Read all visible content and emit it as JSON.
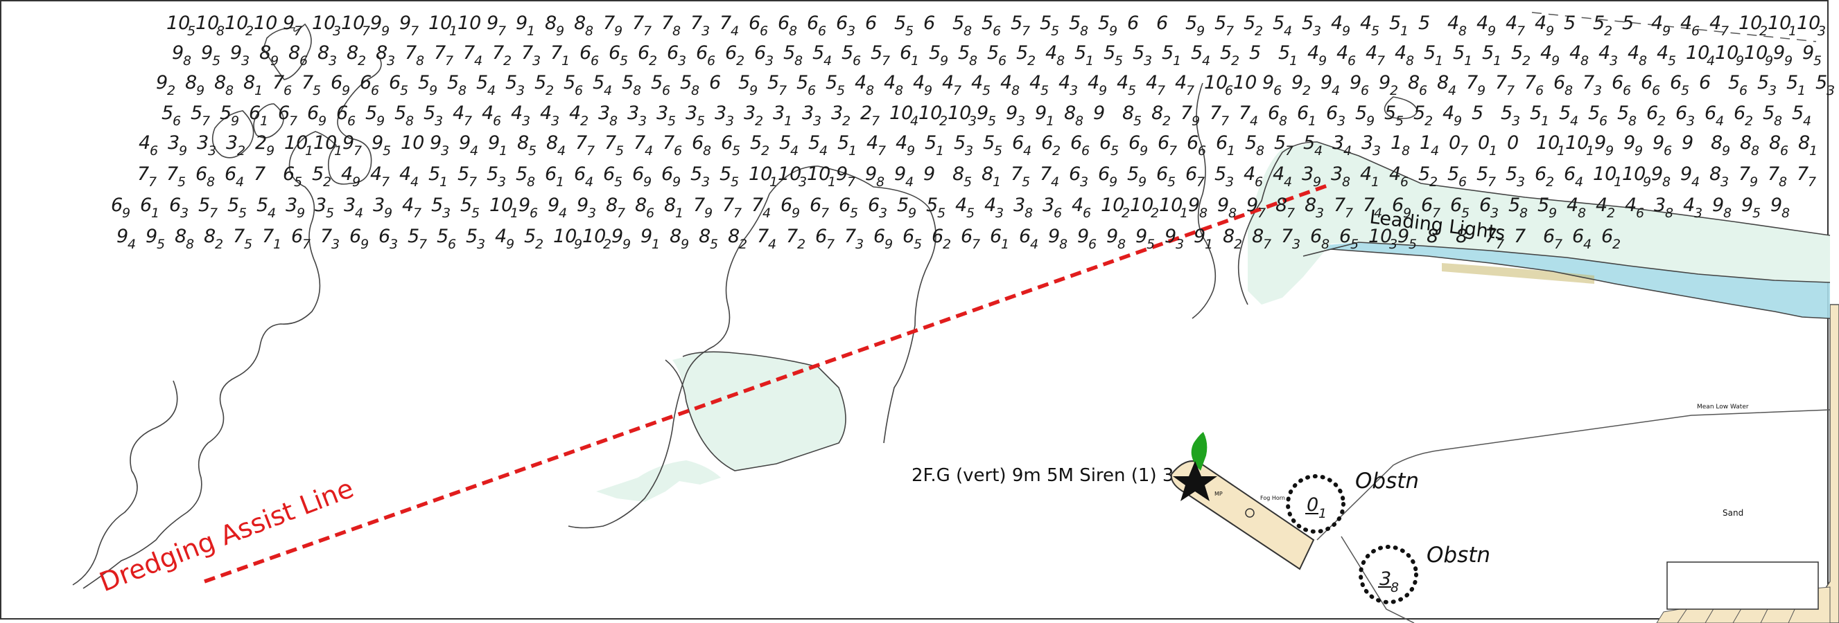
{
  "chart_title": "",
  "labels": {
    "dredging_line": "Dredging Assist Line",
    "leading_lights": "Leading Lights",
    "light_characteristic": "2F.G (vert) 9m 5M Siren (1) 30s",
    "obstruction_1": "Obstn",
    "obstruction_2": "Obstn",
    "obstruction_1_depth": "0",
    "obstruction_1_depth_sub": "1",
    "obstruction_2_depth": "3",
    "obstruction_2_depth_sub": "8",
    "mean_low_water": "Mean Low Water",
    "sand": "Sand",
    "fog_horn": "Fog Horn",
    "mp": "MP"
  },
  "colors": {
    "dredging_line": "#e11d1d",
    "shoal_tint": "#e4f4ec",
    "drying_tint": "#a8dce8",
    "land_tint": "#f5e6c4",
    "light_flare": "#1fa31f"
  },
  "icons": [
    "light-star-icon",
    "light-flare-icon",
    "obstruction-circle-icon"
  ],
  "soundings": [
    [
      "10",
      "5"
    ],
    [
      "10",
      "8"
    ],
    [
      "10",
      "2"
    ],
    [
      "10",
      ""
    ],
    [
      "9",
      "7"
    ],
    [
      "10",
      "3"
    ],
    [
      "10",
      "7"
    ],
    [
      "9",
      "9"
    ],
    [
      "9",
      "7"
    ],
    [
      "10",
      "1"
    ],
    [
      "10",
      ""
    ],
    [
      "9",
      "7"
    ],
    [
      "9",
      "1"
    ],
    [
      "8",
      "9"
    ],
    [
      "8",
      "8"
    ],
    [
      "7",
      "9"
    ],
    [
      "7",
      "7"
    ],
    [
      "7",
      "8"
    ],
    [
      "7",
      "3"
    ],
    [
      "7",
      "4"
    ],
    [
      "6",
      "6"
    ],
    [
      "6",
      "8"
    ],
    [
      "6",
      "6"
    ],
    [
      "6",
      "3"
    ],
    [
      "6",
      ""
    ],
    [
      "5",
      "5"
    ],
    [
      "6",
      ""
    ],
    [
      "5",
      "8"
    ],
    [
      "5",
      "6"
    ],
    [
      "5",
      "7"
    ],
    [
      "5",
      "5"
    ],
    [
      "5",
      "8"
    ],
    [
      "5",
      "9"
    ],
    [
      "6",
      ""
    ],
    [
      "6",
      ""
    ],
    [
      "5",
      "9"
    ],
    [
      "5",
      "7"
    ],
    [
      "5",
      "2"
    ],
    [
      "5",
      "4"
    ],
    [
      "5",
      "3"
    ],
    [
      "4",
      "9"
    ],
    [
      "4",
      "5"
    ],
    [
      "5",
      "1"
    ],
    [
      "5",
      ""
    ],
    [
      "4",
      "8"
    ],
    [
      "4",
      "9"
    ],
    [
      "4",
      "7"
    ],
    [
      "4",
      "9"
    ],
    [
      "5",
      ""
    ],
    [
      "5",
      "2"
    ],
    [
      "5",
      ""
    ],
    [
      "4",
      "9"
    ],
    [
      "4",
      "6"
    ],
    [
      "4",
      "7"
    ],
    [
      "10",
      "2"
    ],
    [
      "10",
      "1"
    ],
    [
      "10",
      "3"
    ],
    [
      "9",
      "8"
    ],
    [
      "9",
      "5"
    ],
    [
      "9",
      "3"
    ],
    [
      "8",
      "9"
    ],
    [
      "8",
      "6"
    ],
    [
      "8",
      "3"
    ],
    [
      "8",
      "2"
    ],
    [
      "8",
      "3"
    ],
    [
      "7",
      "8"
    ],
    [
      "7",
      "7"
    ],
    [
      "7",
      "4"
    ],
    [
      "7",
      "2"
    ],
    [
      "7",
      "3"
    ],
    [
      "7",
      "1"
    ],
    [
      "6",
      "6"
    ],
    [
      "6",
      "5"
    ],
    [
      "6",
      "2"
    ],
    [
      "6",
      "3"
    ],
    [
      "6",
      "6"
    ],
    [
      "6",
      "2"
    ],
    [
      "6",
      "3"
    ],
    [
      "5",
      "8"
    ],
    [
      "5",
      "4"
    ],
    [
      "5",
      "6"
    ],
    [
      "5",
      "7"
    ],
    [
      "6",
      "1"
    ],
    [
      "5",
      "9"
    ],
    [
      "5",
      "8"
    ],
    [
      "5",
      "6"
    ],
    [
      "5",
      "2"
    ],
    [
      "4",
      "8"
    ],
    [
      "5",
      "1"
    ],
    [
      "5",
      "5"
    ],
    [
      "5",
      "3"
    ],
    [
      "5",
      "1"
    ],
    [
      "5",
      "4"
    ],
    [
      "5",
      "2"
    ],
    [
      "5",
      ""
    ],
    [
      "5",
      "1"
    ],
    [
      "4",
      "9"
    ],
    [
      "4",
      "6"
    ],
    [
      "4",
      "7"
    ],
    [
      "4",
      "8"
    ],
    [
      "5",
      "1"
    ],
    [
      "5",
      "1"
    ],
    [
      "5",
      "1"
    ],
    [
      "5",
      "2"
    ],
    [
      "4",
      "9"
    ],
    [
      "4",
      "8"
    ],
    [
      "4",
      "3"
    ],
    [
      "4",
      "8"
    ],
    [
      "4",
      "5"
    ],
    [
      "10",
      "4"
    ],
    [
      "10",
      "9"
    ],
    [
      "10",
      "9"
    ],
    [
      "9",
      "9"
    ],
    [
      "9",
      "5"
    ],
    [
      "9",
      "2"
    ],
    [
      "8",
      "9"
    ],
    [
      "8",
      "8"
    ],
    [
      "8",
      "1"
    ],
    [
      "7",
      "6"
    ],
    [
      "7",
      "5"
    ],
    [
      "6",
      "9"
    ],
    [
      "6",
      "6"
    ],
    [
      "6",
      "5"
    ],
    [
      "5",
      "9"
    ],
    [
      "5",
      "8"
    ],
    [
      "5",
      "4"
    ],
    [
      "5",
      "3"
    ],
    [
      "5",
      "2"
    ],
    [
      "5",
      "6"
    ],
    [
      "5",
      "4"
    ],
    [
      "5",
      "8"
    ],
    [
      "5",
      "6"
    ],
    [
      "5",
      "8"
    ],
    [
      "6",
      ""
    ],
    [
      "5",
      "9"
    ],
    [
      "5",
      "7"
    ],
    [
      "5",
      "6"
    ],
    [
      "5",
      "5"
    ],
    [
      "4",
      "8"
    ],
    [
      "4",
      "8"
    ],
    [
      "4",
      "9"
    ],
    [
      "4",
      "7"
    ],
    [
      "4",
      "5"
    ],
    [
      "4",
      "8"
    ],
    [
      "4",
      "5"
    ],
    [
      "4",
      "3"
    ],
    [
      "4",
      "9"
    ],
    [
      "4",
      "5"
    ],
    [
      "4",
      "7"
    ],
    [
      "4",
      "7"
    ],
    [
      "10",
      "6"
    ],
    [
      "10",
      ""
    ],
    [
      "9",
      "6"
    ],
    [
      "9",
      "2"
    ],
    [
      "9",
      "4"
    ],
    [
      "9",
      "6"
    ],
    [
      "9",
      "2"
    ],
    [
      "8",
      "6"
    ],
    [
      "8",
      "4"
    ],
    [
      "7",
      "9"
    ],
    [
      "7",
      "7"
    ],
    [
      "7",
      "6"
    ],
    [
      "6",
      "8"
    ],
    [
      "7",
      "3"
    ],
    [
      "6",
      "6"
    ],
    [
      "6",
      "6"
    ],
    [
      "6",
      "5"
    ],
    [
      "6",
      ""
    ],
    [
      "5",
      "6"
    ],
    [
      "5",
      "3"
    ],
    [
      "5",
      "1"
    ],
    [
      "5",
      "3"
    ],
    [
      "5",
      "6"
    ],
    [
      "5",
      "7"
    ],
    [
      "5",
      "9"
    ],
    [
      "6",
      "1"
    ],
    [
      "6",
      "7"
    ],
    [
      "6",
      "9"
    ],
    [
      "6",
      "6"
    ],
    [
      "5",
      "9"
    ],
    [
      "5",
      "8"
    ],
    [
      "5",
      "3"
    ],
    [
      "4",
      "7"
    ],
    [
      "4",
      "6"
    ],
    [
      "4",
      "3"
    ],
    [
      "4",
      "3"
    ],
    [
      "4",
      "2"
    ],
    [
      "3",
      "8"
    ],
    [
      "3",
      "3"
    ],
    [
      "3",
      "5"
    ],
    [
      "3",
      "5"
    ],
    [
      "3",
      "3"
    ],
    [
      "3",
      "2"
    ],
    [
      "3",
      "1"
    ],
    [
      "3",
      "3"
    ],
    [
      "3",
      "2"
    ],
    [
      "2",
      "7"
    ],
    [
      "10",
      "4"
    ],
    [
      "10",
      "2"
    ],
    [
      "10",
      "3"
    ],
    [
      "9",
      "5"
    ],
    [
      "9",
      "3"
    ],
    [
      "9",
      "1"
    ],
    [
      "8",
      "8"
    ],
    [
      "9",
      ""
    ],
    [
      "8",
      "5"
    ],
    [
      "8",
      "2"
    ],
    [
      "7",
      "9"
    ],
    [
      "7",
      "7"
    ],
    [
      "7",
      "4"
    ],
    [
      "6",
      "8"
    ],
    [
      "6",
      "1"
    ],
    [
      "6",
      "3"
    ],
    [
      "5",
      "9"
    ],
    [
      "5",
      "5"
    ],
    [
      "5",
      "2"
    ],
    [
      "4",
      "9"
    ],
    [
      "5",
      ""
    ],
    [
      "5",
      "3"
    ],
    [
      "5",
      "1"
    ],
    [
      "5",
      "4"
    ],
    [
      "5",
      "6"
    ],
    [
      "5",
      "8"
    ],
    [
      "6",
      "2"
    ],
    [
      "6",
      "3"
    ],
    [
      "6",
      "4"
    ],
    [
      "6",
      "2"
    ],
    [
      "5",
      "8"
    ],
    [
      "5",
      "4"
    ],
    [
      "4",
      "6"
    ],
    [
      "3",
      "9"
    ],
    [
      "3",
      "3"
    ],
    [
      "3",
      "2"
    ],
    [
      "2",
      "9"
    ],
    [
      "10",
      "1"
    ],
    [
      "10",
      "1"
    ],
    [
      "9",
      "7"
    ],
    [
      "9",
      "5"
    ],
    [
      "10",
      ""
    ],
    [
      "9",
      "3"
    ],
    [
      "9",
      "4"
    ],
    [
      "9",
      "1"
    ],
    [
      "8",
      "5"
    ],
    [
      "8",
      "4"
    ],
    [
      "7",
      "7"
    ],
    [
      "7",
      "5"
    ],
    [
      "7",
      "4"
    ],
    [
      "7",
      "6"
    ],
    [
      "6",
      "8"
    ],
    [
      "6",
      "5"
    ],
    [
      "5",
      "2"
    ],
    [
      "5",
      "4"
    ],
    [
      "5",
      "4"
    ],
    [
      "5",
      "1"
    ],
    [
      "4",
      "7"
    ],
    [
      "4",
      "9"
    ],
    [
      "5",
      "1"
    ],
    [
      "5",
      "3"
    ],
    [
      "5",
      "5"
    ],
    [
      "6",
      "4"
    ],
    [
      "6",
      "2"
    ],
    [
      "6",
      "6"
    ],
    [
      "6",
      "5"
    ],
    [
      "6",
      "9"
    ],
    [
      "6",
      "7"
    ],
    [
      "6",
      "6"
    ],
    [
      "6",
      "1"
    ],
    [
      "5",
      "8"
    ],
    [
      "5",
      "7"
    ],
    [
      "5",
      "4"
    ],
    [
      "3",
      "4"
    ],
    [
      "3",
      "3"
    ],
    [
      "1",
      "8"
    ],
    [
      "1",
      "4"
    ],
    [
      "0",
      "7"
    ],
    [
      "0",
      "1"
    ],
    [
      "0",
      ""
    ],
    [
      "10",
      "1"
    ],
    [
      "10",
      "1"
    ],
    [
      "9",
      "9"
    ],
    [
      "9",
      "9"
    ],
    [
      "9",
      "6"
    ],
    [
      "9",
      ""
    ],
    [
      "8",
      "9"
    ],
    [
      "8",
      "8"
    ],
    [
      "8",
      "6"
    ],
    [
      "8",
      "1"
    ],
    [
      "7",
      "7"
    ],
    [
      "7",
      "5"
    ],
    [
      "6",
      "8"
    ],
    [
      "6",
      "4"
    ],
    [
      "7",
      ""
    ],
    [
      "6",
      "5"
    ],
    [
      "5",
      "2"
    ],
    [
      "4",
      "9"
    ],
    [
      "4",
      "7"
    ],
    [
      "4",
      "4"
    ],
    [
      "5",
      "1"
    ],
    [
      "5",
      "7"
    ],
    [
      "5",
      "3"
    ],
    [
      "5",
      "8"
    ],
    [
      "6",
      "1"
    ],
    [
      "6",
      "4"
    ],
    [
      "6",
      "5"
    ],
    [
      "6",
      "9"
    ],
    [
      "6",
      "9"
    ],
    [
      "5",
      "3"
    ],
    [
      "5",
      "5"
    ],
    [
      "10",
      "1"
    ],
    [
      "10",
      "3"
    ],
    [
      "10",
      "1"
    ],
    [
      "9",
      "7"
    ],
    [
      "9",
      "8"
    ],
    [
      "9",
      "4"
    ],
    [
      "9",
      ""
    ],
    [
      "8",
      "5"
    ],
    [
      "8",
      "1"
    ],
    [
      "7",
      "5"
    ],
    [
      "7",
      "4"
    ],
    [
      "6",
      "3"
    ],
    [
      "6",
      "9"
    ],
    [
      "5",
      "9"
    ],
    [
      "6",
      "5"
    ],
    [
      "6",
      "7"
    ],
    [
      "5",
      "3"
    ],
    [
      "4",
      "6"
    ],
    [
      "4",
      "4"
    ],
    [
      "3",
      "9"
    ],
    [
      "3",
      "8"
    ],
    [
      "4",
      "1"
    ],
    [
      "4",
      "6"
    ],
    [
      "5",
      "2"
    ],
    [
      "5",
      "6"
    ],
    [
      "5",
      "7"
    ],
    [
      "5",
      "3"
    ],
    [
      "6",
      "2"
    ],
    [
      "6",
      "4"
    ],
    [
      "10",
      "1"
    ],
    [
      "10",
      "9"
    ],
    [
      "9",
      "8"
    ],
    [
      "9",
      "4"
    ],
    [
      "8",
      "3"
    ],
    [
      "7",
      "9"
    ],
    [
      "7",
      "8"
    ],
    [
      "7",
      "7"
    ],
    [
      "6",
      "9"
    ],
    [
      "6",
      "1"
    ],
    [
      "6",
      "3"
    ],
    [
      "5",
      "7"
    ],
    [
      "5",
      "5"
    ],
    [
      "5",
      "4"
    ],
    [
      "3",
      "9"
    ],
    [
      "3",
      "5"
    ],
    [
      "3",
      "4"
    ],
    [
      "3",
      "9"
    ],
    [
      "4",
      "7"
    ],
    [
      "5",
      "3"
    ],
    [
      "5",
      "5"
    ],
    [
      "10",
      "1"
    ],
    [
      "9",
      "6"
    ],
    [
      "9",
      "4"
    ],
    [
      "9",
      "3"
    ],
    [
      "8",
      "7"
    ],
    [
      "8",
      "6"
    ],
    [
      "8",
      "1"
    ],
    [
      "7",
      "9"
    ],
    [
      "7",
      "7"
    ],
    [
      "7",
      "4"
    ],
    [
      "6",
      "9"
    ],
    [
      "6",
      "7"
    ],
    [
      "6",
      "5"
    ],
    [
      "6",
      "3"
    ],
    [
      "5",
      "9"
    ],
    [
      "5",
      "5"
    ],
    [
      "4",
      "5"
    ],
    [
      "4",
      "3"
    ],
    [
      "3",
      "8"
    ],
    [
      "3",
      "6"
    ],
    [
      "4",
      "6"
    ],
    [
      "10",
      "2"
    ],
    [
      "10",
      "2"
    ],
    [
      "10",
      "1"
    ],
    [
      "9",
      "8"
    ],
    [
      "9",
      "8"
    ],
    [
      "9",
      "7"
    ],
    [
      "8",
      "7"
    ],
    [
      "8",
      "3"
    ],
    [
      "7",
      "7"
    ],
    [
      "7",
      "4"
    ],
    [
      "6",
      "9"
    ],
    [
      "6",
      "7"
    ],
    [
      "6",
      "5"
    ],
    [
      "6",
      "3"
    ],
    [
      "5",
      "8"
    ],
    [
      "5",
      "9"
    ],
    [
      "4",
      "8"
    ],
    [
      "4",
      "2"
    ],
    [
      "4",
      "6"
    ],
    [
      "3",
      "8"
    ],
    [
      "4",
      "3"
    ],
    [
      "9",
      "8"
    ],
    [
      "9",
      "5"
    ],
    [
      "9",
      "8"
    ],
    [
      "9",
      "4"
    ],
    [
      "9",
      "5"
    ],
    [
      "8",
      "8"
    ],
    [
      "8",
      "2"
    ],
    [
      "7",
      "5"
    ],
    [
      "7",
      "1"
    ],
    [
      "6",
      "7"
    ],
    [
      "7",
      "3"
    ],
    [
      "6",
      "9"
    ],
    [
      "6",
      "3"
    ],
    [
      "5",
      "7"
    ],
    [
      "5",
      "6"
    ],
    [
      "5",
      "3"
    ],
    [
      "4",
      "9"
    ],
    [
      "5",
      "2"
    ],
    [
      "10",
      "9"
    ],
    [
      "10",
      "2"
    ],
    [
      "9",
      "9"
    ],
    [
      "9",
      "1"
    ],
    [
      "8",
      "9"
    ],
    [
      "8",
      "5"
    ],
    [
      "8",
      "2"
    ],
    [
      "7",
      "4"
    ],
    [
      "7",
      "2"
    ],
    [
      "6",
      "7"
    ],
    [
      "7",
      "3"
    ],
    [
      "6",
      "9"
    ],
    [
      "6",
      "5"
    ],
    [
      "6",
      "2"
    ],
    [
      "6",
      "7"
    ],
    [
      "6",
      "1"
    ],
    [
      "6",
      "4"
    ],
    [
      "9",
      "8"
    ],
    [
      "9",
      "6"
    ],
    [
      "9",
      "8"
    ],
    [
      "9",
      "5"
    ],
    [
      "9",
      "3"
    ],
    [
      "9",
      "1"
    ],
    [
      "8",
      "2"
    ],
    [
      "8",
      "7"
    ],
    [
      "7",
      "3"
    ],
    [
      "6",
      "8"
    ],
    [
      "6",
      "5"
    ],
    [
      "10",
      "3"
    ],
    [
      "9",
      "5"
    ],
    [
      "8",
      ""
    ],
    [
      "8",
      ""
    ],
    [
      "7",
      "7"
    ],
    [
      "7",
      ""
    ],
    [
      "6",
      "7"
    ],
    [
      "6",
      "4"
    ],
    [
      "6",
      "2"
    ]
  ]
}
